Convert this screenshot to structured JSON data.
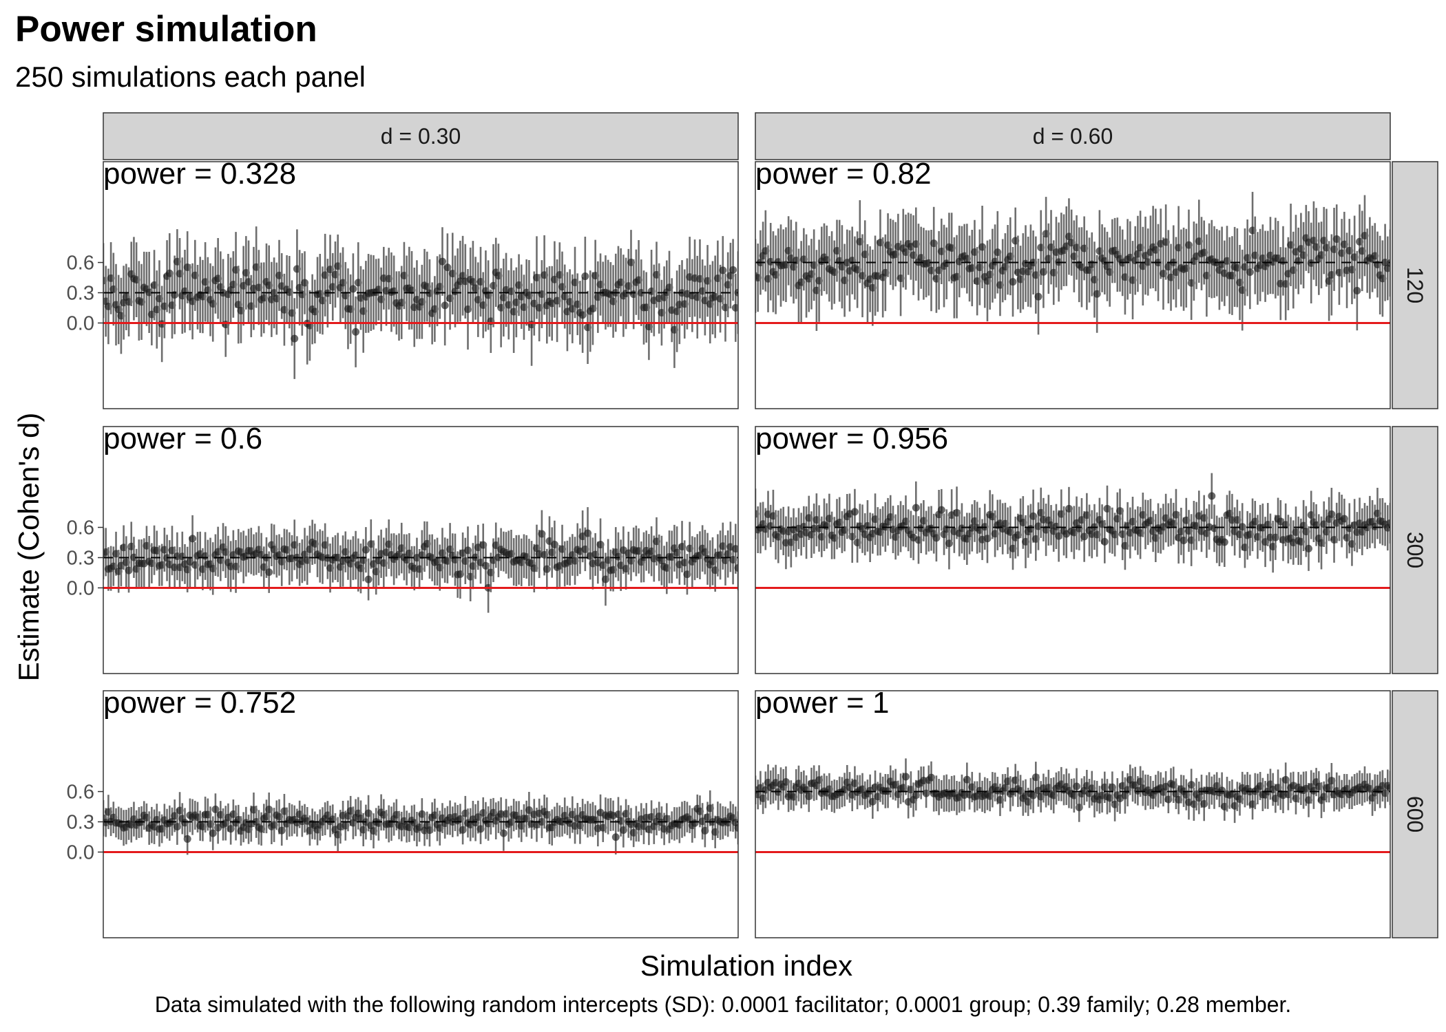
{
  "chart_data": {
    "type": "scatter",
    "title": "Power simulation",
    "subtitle": "250 simulations each panel",
    "xlabel": "Simulation index",
    "ylabel": "Estimate (Cohen's d)",
    "caption": "Data simulated with the following random intercepts (SD): 0.0001 facilitator; 0.0001 group; 0.39 family; 0.28 member.",
    "ylim": [
      -0.85,
      1.6
    ],
    "yticks": [
      "0.0",
      "0.3",
      "0.6"
    ],
    "simulations_per_panel": 250,
    "grid": false,
    "reference_line_color": "#e41a1c",
    "reference_line_value": 0,
    "point_color": "#1a1a1a",
    "errorbar_color": "#6e6e6e",
    "columns": [
      {
        "label": "d = 0.30",
        "d": 0.3
      },
      {
        "label": "d = 0.60",
        "d": 0.6
      }
    ],
    "rows": [
      {
        "label": "120",
        "n": 120,
        "ci_half_width": 0.36,
        "estimate_sd": 0.13
      },
      {
        "label": "300",
        "n": 300,
        "ci_half_width": 0.23,
        "estimate_sd": 0.08
      },
      {
        "label": "600",
        "n": 600,
        "ci_half_width": 0.16,
        "estimate_sd": 0.055
      }
    ],
    "panels": [
      {
        "column": 0,
        "row": 0,
        "power_label": "power = 0.328",
        "power": 0.328
      },
      {
        "column": 1,
        "row": 0,
        "power_label": "power = 0.82",
        "power": 0.82
      },
      {
        "column": 0,
        "row": 1,
        "power_label": "power = 0.6",
        "power": 0.6
      },
      {
        "column": 1,
        "row": 1,
        "power_label": "power = 0.956",
        "power": 0.956
      },
      {
        "column": 0,
        "row": 2,
        "power_label": "power = 0.752",
        "power": 0.752
      },
      {
        "column": 1,
        "row": 2,
        "power_label": "power = 1",
        "power": 1
      }
    ]
  }
}
